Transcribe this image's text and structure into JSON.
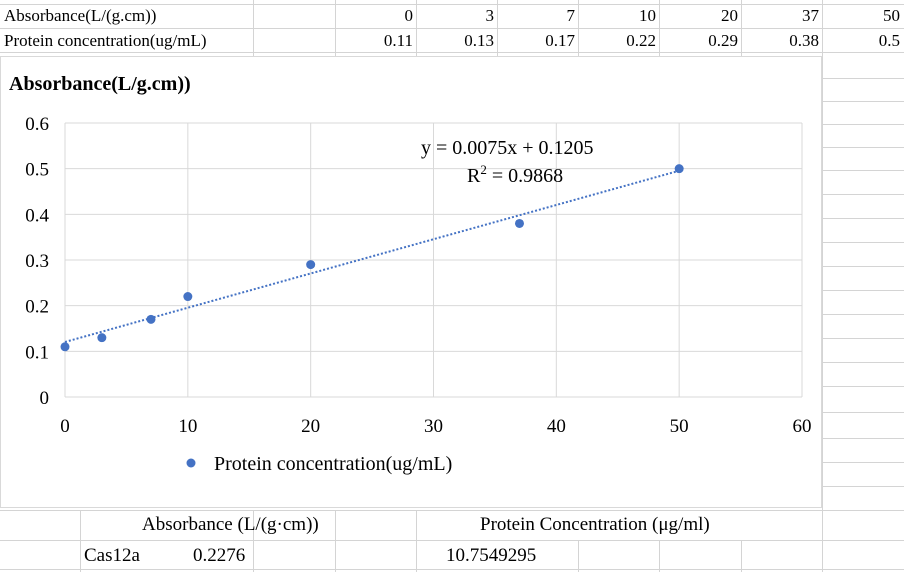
{
  "sheet": {
    "row1_label": "Absorbance(L/(g.cm))",
    "row2_label": "Protein concentration(ug/mL)",
    "row1_values": [
      "0",
      "3",
      "7",
      "10",
      "20",
      "37",
      "50"
    ],
    "row2_values": [
      "0.11",
      "0.13",
      "0.17",
      "0.22",
      "0.29",
      "0.38",
      "0.5"
    ],
    "result_header_absorbance": "Absorbance (L/(g·cm))",
    "result_header_concentration": "Protein Concentration (μg/ml)",
    "result_label": "Cas12a",
    "result_absorbance": "0.2276",
    "result_concentration": "10.7549295"
  },
  "chart_data": {
    "type": "scatter",
    "title": "Absorbance(L/g.cm))",
    "x": [
      0,
      3,
      7,
      10,
      20,
      37,
      50
    ],
    "series": [
      {
        "name": "Protein concentration(ug/mL)",
        "values": [
          0.11,
          0.13,
          0.17,
          0.22,
          0.29,
          0.38,
          0.5
        ],
        "color": "#4472c4"
      }
    ],
    "xlim": [
      0,
      60
    ],
    "ylim": [
      0,
      0.6
    ],
    "x_ticks": [
      "0",
      "10",
      "20",
      "30",
      "40",
      "50",
      "60"
    ],
    "y_ticks": [
      "0",
      "0.1",
      "0.2",
      "0.3",
      "0.4",
      "0.5",
      "0.6"
    ],
    "trendline": {
      "type": "linear",
      "slope": 0.0075,
      "intercept": 0.1205,
      "equation": "y = 0.0075x + 0.1205",
      "r2_label": "R",
      "r2_sup": "2",
      "r2_value": " = 0.9868"
    },
    "grid": true,
    "legend_position": "bottom"
  }
}
